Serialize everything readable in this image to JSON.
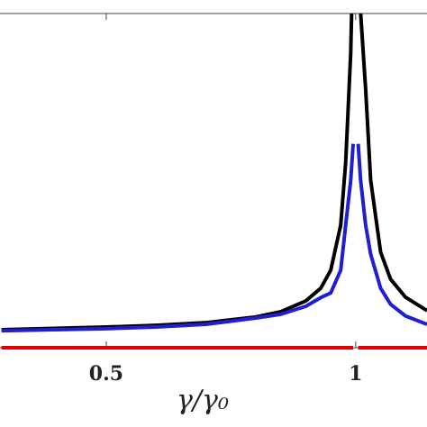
{
  "chart_data": {
    "type": "line",
    "xlabel": "γ/γ₀",
    "x": [
      0.29,
      0.5,
      0.6,
      0.7,
      0.8,
      0.85,
      0.9,
      0.93,
      0.95,
      0.97,
      0.98,
      0.99,
      0.995,
      1.0,
      1.005,
      1.01,
      1.02,
      1.03,
      1.05,
      1.07,
      1.1,
      1.143
    ],
    "series": [
      {
        "color": "#000000",
        "values": [
          0.054,
          0.062,
          0.067,
          0.075,
          0.092,
          0.108,
          0.14,
          0.178,
          0.232,
          0.367,
          0.555,
          0.879,
          1.2,
          null,
          1.2,
          1.0,
          0.774,
          0.502,
          0.286,
          0.205,
          0.151,
          0.111
        ]
      },
      {
        "color": "#1f1fd0",
        "values": [
          0.051,
          0.057,
          0.062,
          0.07,
          0.089,
          0.1,
          0.124,
          0.15,
          0.164,
          0.232,
          0.367,
          0.5,
          0.61,
          null,
          0.61,
          0.5,
          0.367,
          0.28,
          0.178,
          0.13,
          0.095,
          0.07
        ]
      },
      {
        "color": "#e00000",
        "values": [
          0,
          0,
          0,
          0,
          0,
          0,
          0,
          0,
          0,
          0,
          0,
          0,
          0,
          null,
          0,
          0,
          0,
          0,
          0,
          0,
          0,
          0
        ]
      }
    ],
    "xlim": [
      0.287,
      1.143
    ],
    "ylim": [
      0,
      1
    ],
    "xticks": [
      0.5,
      1
    ]
  }
}
